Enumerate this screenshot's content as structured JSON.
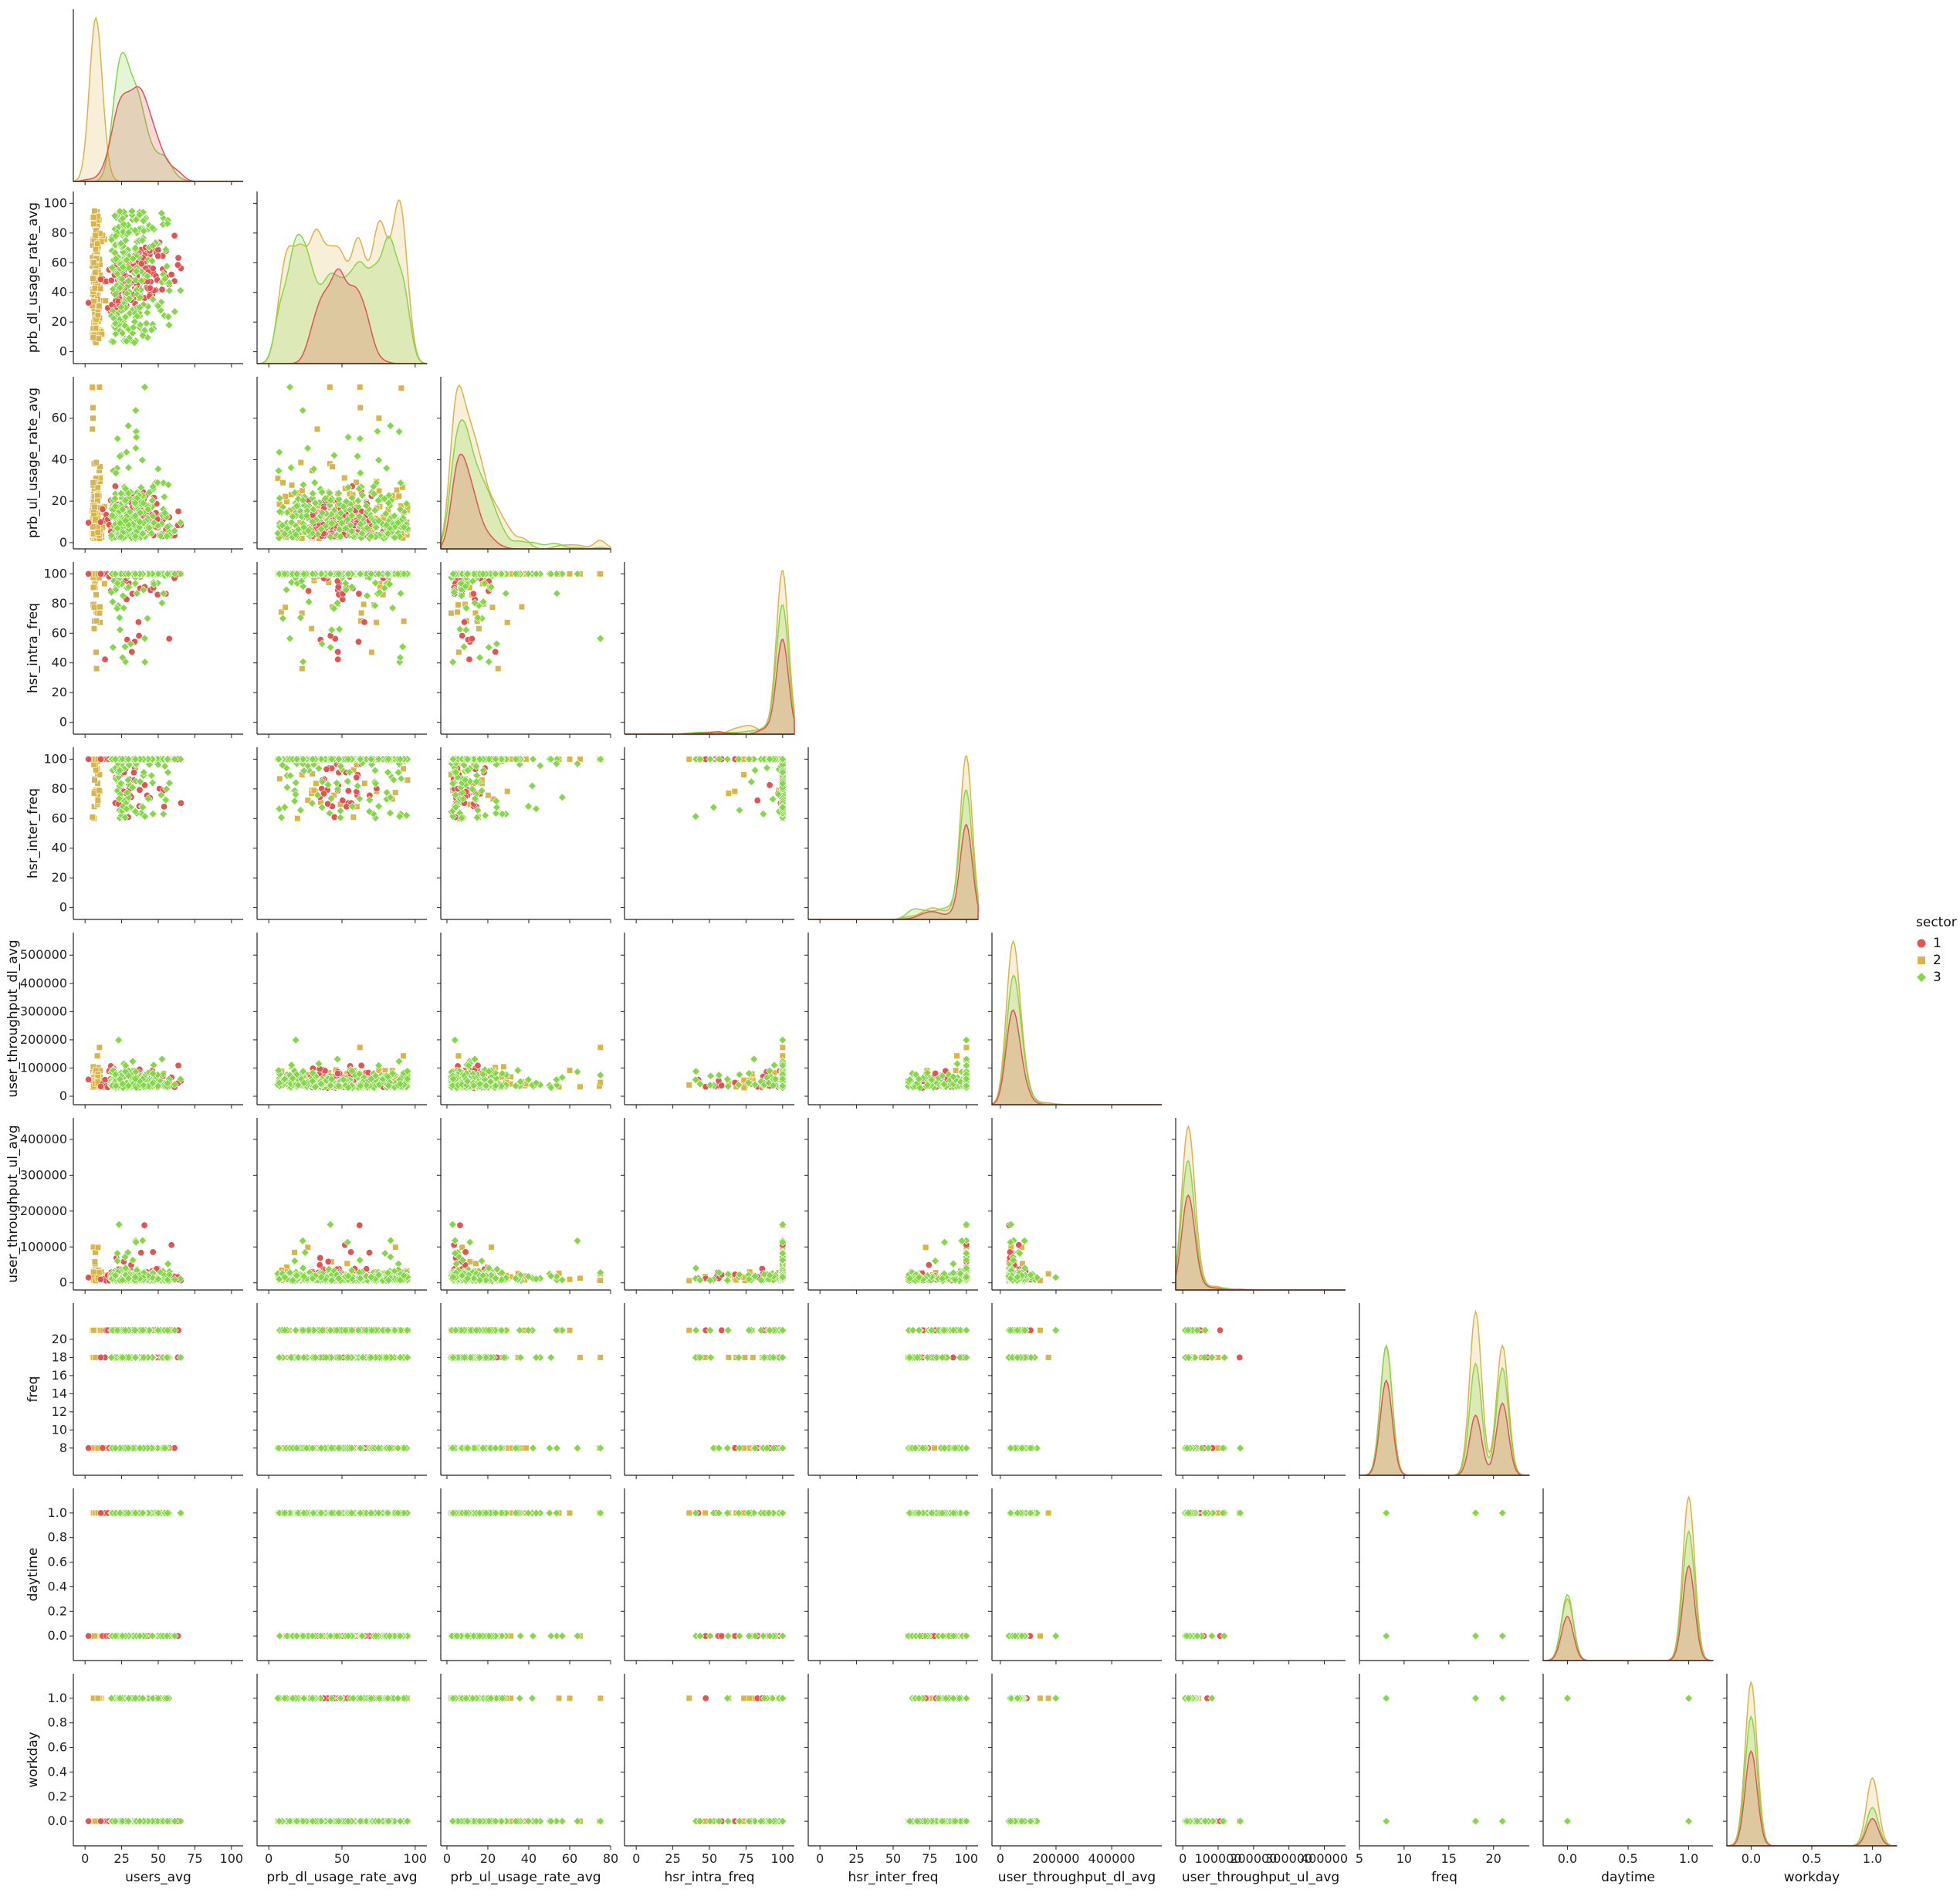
{
  "chart_data": {
    "type": "scatter",
    "layout": "pairplot-lower-corner",
    "variables": [
      "users_avg",
      "prb_dl_usage_rate_avg",
      "prb_ul_usage_rate_avg",
      "hsr_intra_freq",
      "hsr_inter_freq",
      "user_throughput_dl_avg",
      "user_throughput_ul_avg",
      "freq",
      "daytime",
      "workday"
    ],
    "x_labels": [
      "users_avg",
      "prb_dl_usage_rate_avg",
      "prb_ul_usage_rate_avg",
      "hsr_intra_freq",
      "hsr_inter_freq",
      "user_throughput_dl_avg",
      "user_throughput_ul_avg",
      "freq",
      "daytime",
      "workday"
    ],
    "y_labels": [
      "",
      "prb_dl_usage_rate_avg",
      "prb_ul_usage_rate_avg",
      "hsr_intra_freq",
      "hsr_inter_freq",
      "user_throughput_dl_avg",
      "user_throughput_ul_avg",
      "freq",
      "daytime",
      "workday"
    ],
    "ranges": [
      [
        -8,
        108
      ],
      [
        -8,
        108
      ],
      [
        -3,
        80
      ],
      [
        -8,
        108
      ],
      [
        -8,
        108
      ],
      [
        -30000,
        580000
      ],
      [
        -20000,
        460000
      ],
      [
        5,
        24
      ],
      [
        -0.2,
        1.2
      ],
      [
        -0.2,
        1.2
      ]
    ],
    "x_ticks": [
      [
        "0",
        "25",
        "50",
        "75",
        "100"
      ],
      [
        "0",
        "50",
        "100"
      ],
      [
        "0",
        "20",
        "40",
        "60",
        "80"
      ],
      [
        "0",
        "25",
        "50",
        "75",
        "100"
      ],
      [
        "0",
        "25",
        "50",
        "75",
        "100"
      ],
      [
        "0",
        "200000",
        "400000"
      ],
      [
        "0",
        "100000",
        "200000",
        "300000",
        "400000"
      ],
      [
        "5",
        "10",
        "15",
        "20"
      ],
      [
        "0.0",
        "0.5",
        "1.0"
      ],
      [
        "0.0",
        "0.5",
        "1.0"
      ]
    ],
    "x_tick_values": [
      [
        0,
        25,
        50,
        75,
        100
      ],
      [
        0,
        50,
        100
      ],
      [
        0,
        20,
        40,
        60,
        80
      ],
      [
        0,
        25,
        50,
        75,
        100
      ],
      [
        0,
        25,
        50,
        75,
        100
      ],
      [
        0,
        200000,
        400000
      ],
      [
        0,
        100000,
        200000,
        300000,
        400000
      ],
      [
        5,
        10,
        15,
        20
      ],
      [
        0,
        0.5,
        1
      ],
      [
        0,
        0.5,
        1
      ]
    ],
    "y_ticks": [
      [],
      [
        "0",
        "20",
        "40",
        "60",
        "80",
        "100"
      ],
      [
        "0",
        "20",
        "40",
        "60"
      ],
      [
        "0",
        "20",
        "40",
        "60",
        "80",
        "100"
      ],
      [
        "0",
        "20",
        "40",
        "60",
        "80",
        "100"
      ],
      [
        "0",
        "100000",
        "200000",
        "300000",
        "400000",
        "500000"
      ],
      [
        "0",
        "100000",
        "200000",
        "300000",
        "400000"
      ],
      [
        "8",
        "10",
        "12",
        "14",
        "16",
        "18",
        "20"
      ],
      [
        "0.0",
        "0.2",
        "0.4",
        "0.6",
        "0.8",
        "1.0"
      ],
      [
        "0.0",
        "0.2",
        "0.4",
        "0.6",
        "0.8",
        "1.0"
      ]
    ],
    "y_tick_values": [
      [],
      [
        0,
        20,
        40,
        60,
        80,
        100
      ],
      [
        0,
        20,
        40,
        60
      ],
      [
        0,
        20,
        40,
        60,
        80,
        100
      ],
      [
        0,
        20,
        40,
        60,
        80,
        100
      ],
      [
        0,
        100000,
        200000,
        300000,
        400000,
        500000
      ],
      [
        0,
        100000,
        200000,
        300000,
        400000
      ],
      [
        8,
        10,
        12,
        14,
        16,
        18,
        20
      ],
      [
        0,
        0.2,
        0.4,
        0.6,
        0.8,
        1
      ],
      [
        0,
        0.2,
        0.4,
        0.6,
        0.8,
        1
      ]
    ],
    "legend": {
      "title": "sector",
      "entries": [
        {
          "label": "1",
          "color": "#e05454",
          "marker": "circle"
        },
        {
          "label": "2",
          "color": "#d9b44a",
          "marker": "square"
        },
        {
          "label": "3",
          "color": "#86d64a",
          "marker": "diamond"
        }
      ],
      "placement": "right"
    },
    "diagonal": "kde",
    "kde_peaks": {
      "users_avg": {
        "1": 35,
        "2": 5,
        "3": 15
      },
      "prb_dl_usage_rate_avg": {
        "1": 30,
        "2": 5,
        "3": 10
      },
      "prb_ul_usage_rate_avg": {
        "1": 5,
        "2": 2,
        "3": 3
      },
      "hsr_intra_freq": {
        "1": 100,
        "2": 100,
        "3": 100
      },
      "hsr_inter_freq": {
        "1": 100,
        "2": 100,
        "3": 100
      },
      "user_throughput_dl_avg": {
        "1": 30000,
        "2": 25000,
        "3": 30000
      },
      "user_throughput_ul_avg": {
        "1": 8000,
        "2": 5000,
        "3": 8000
      },
      "freq": {
        "modes": [
          8,
          18,
          21
        ]
      },
      "daytime": {
        "modes": [
          0,
          1
        ]
      },
      "workday": {
        "modes": [
          0,
          1
        ]
      }
    }
  }
}
